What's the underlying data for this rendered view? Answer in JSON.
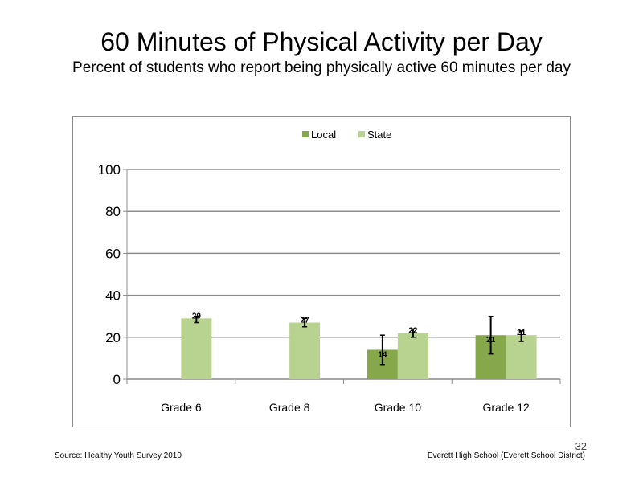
{
  "slide": {
    "title": "60 Minutes of Physical Activity per Day",
    "subtitle": "Percent of students who report being physically active 60 minutes per day",
    "source": "Source: Healthy Youth Survey 2010",
    "school": "Everett High School (Everett School District)",
    "slide_number": "32"
  },
  "chart_data": {
    "type": "bar",
    "categories": [
      "Grade 6",
      "Grade 8",
      "Grade 10",
      "Grade 12"
    ],
    "series": [
      {
        "name": "Local",
        "color": "#86a84a",
        "values": [
          null,
          null,
          14,
          21
        ],
        "labels": [
          "",
          "",
          "14",
          "21"
        ],
        "error_low": [
          null,
          null,
          7,
          12
        ],
        "error_high": [
          null,
          null,
          21,
          30
        ]
      },
      {
        "name": "State",
        "color": "#b8d28f",
        "values": [
          29,
          27,
          22,
          21
        ],
        "labels": [
          "29",
          "27",
          "22",
          "21"
        ],
        "error_low": [
          27,
          25,
          20,
          18
        ],
        "error_high": [
          30,
          29,
          24,
          23
        ]
      }
    ],
    "ylim": [
      0,
      100
    ],
    "yticks": [
      0,
      20,
      40,
      60,
      80,
      100
    ],
    "grid": true,
    "legend_position": "top-center"
  }
}
